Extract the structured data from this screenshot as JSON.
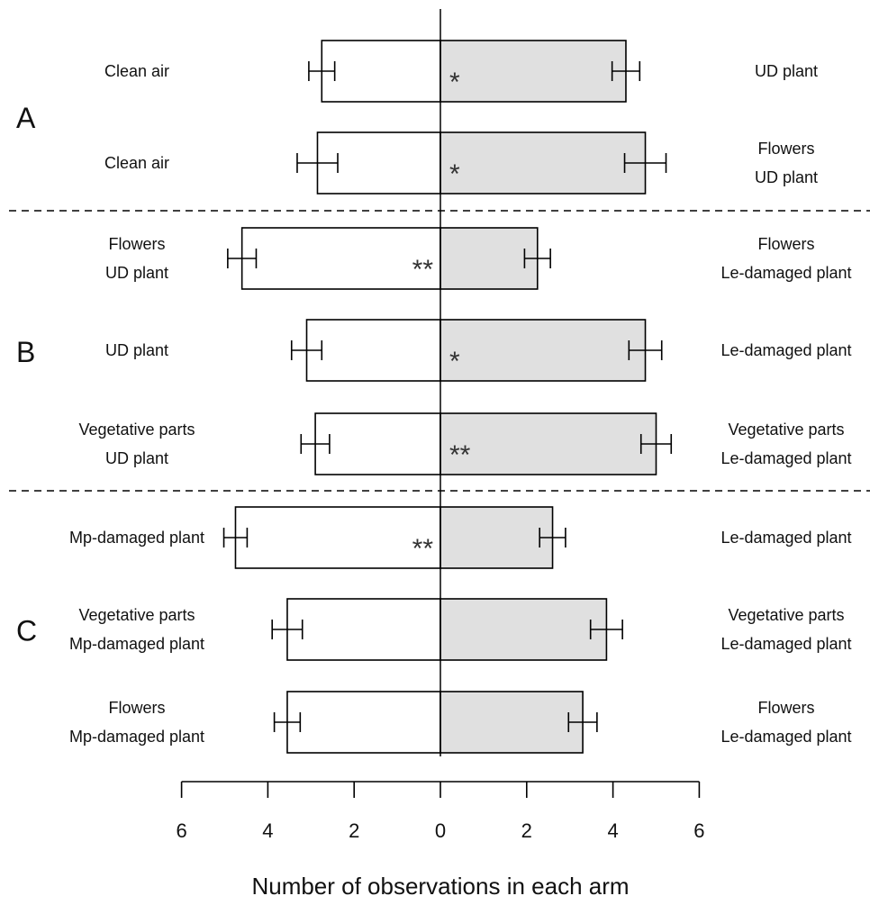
{
  "chart_data": {
    "type": "bar",
    "orientation": "horizontal-diverging",
    "xlabel": "Number of observations in each arm",
    "xlim": [
      -6,
      6
    ],
    "x_ticks": [
      {
        "value": -6,
        "label": "6"
      },
      {
        "value": -4,
        "label": "4"
      },
      {
        "value": -2,
        "label": "2"
      },
      {
        "value": 0,
        "label": "0"
      },
      {
        "value": 2,
        "label": "2"
      },
      {
        "value": 4,
        "label": "4"
      },
      {
        "value": 6,
        "label": "6"
      }
    ],
    "left_color": "#ffffff",
    "right_color": "#e0e0e0",
    "panels": [
      {
        "label": "A",
        "row_span": [
          0,
          1
        ]
      },
      {
        "label": "B",
        "row_span": [
          2,
          4
        ]
      },
      {
        "label": "C",
        "row_span": [
          5,
          7
        ]
      }
    ],
    "rows": [
      {
        "left_label": [
          "Clean air"
        ],
        "right_label": [
          "UD plant"
        ],
        "left": 2.75,
        "left_err": 0.3,
        "right": 4.3,
        "right_err": 0.32,
        "sig": "*",
        "sig_side": "right"
      },
      {
        "left_label": [
          "Clean air"
        ],
        "right_label": [
          "Flowers",
          "UD plant"
        ],
        "left": 2.85,
        "left_err": 0.47,
        "right": 4.75,
        "right_err": 0.48,
        "sig": "*",
        "sig_side": "right"
      },
      {
        "left_label": [
          "Flowers",
          "UD plant"
        ],
        "right_label": [
          "Flowers",
          "Le-damaged plant"
        ],
        "left": 4.6,
        "left_err": 0.33,
        "right": 2.25,
        "right_err": 0.3,
        "sig": "**",
        "sig_side": "left"
      },
      {
        "left_label": [
          "UD plant"
        ],
        "right_label": [
          "Le-damaged plant"
        ],
        "left": 3.1,
        "left_err": 0.35,
        "right": 4.75,
        "right_err": 0.38,
        "sig": "*",
        "sig_side": "right"
      },
      {
        "left_label": [
          "Vegetative parts",
          "UD plant"
        ],
        "right_label": [
          "Vegetative parts",
          "Le-damaged plant"
        ],
        "left": 2.9,
        "left_err": 0.33,
        "right": 5.0,
        "right_err": 0.35,
        "sig": "**",
        "sig_side": "right"
      },
      {
        "left_label": [
          "Mp-damaged plant"
        ],
        "right_label": [
          "Le-damaged plant"
        ],
        "left": 4.75,
        "left_err": 0.27,
        "right": 2.6,
        "right_err": 0.3,
        "sig": "**",
        "sig_side": "left"
      },
      {
        "left_label": [
          "Vegetative parts",
          "Mp-damaged plant"
        ],
        "right_label": [
          "Vegetative parts",
          "Le-damaged plant"
        ],
        "left": 3.55,
        "left_err": 0.35,
        "right": 3.85,
        "right_err": 0.37,
        "sig": "",
        "sig_side": ""
      },
      {
        "left_label": [
          "Flowers",
          "Mp-damaged plant"
        ],
        "right_label": [
          "Flowers",
          "Le-damaged plant"
        ],
        "left": 3.55,
        "left_err": 0.3,
        "right": 3.3,
        "right_err": 0.33,
        "sig": "",
        "sig_side": ""
      }
    ]
  }
}
